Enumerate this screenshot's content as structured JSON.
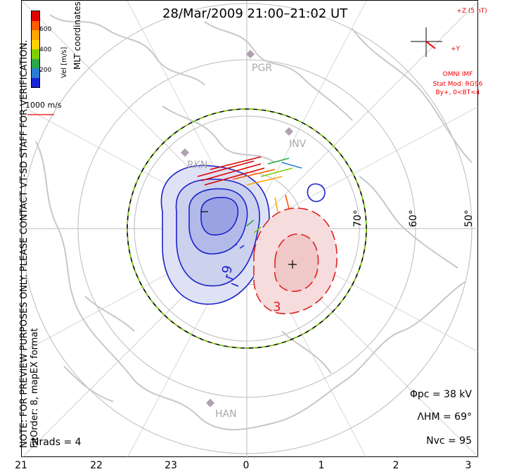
{
  "title": "28/Mar/2009 21:00–21:02 UT",
  "side_note": {
    "line1": "NOTE: FOR PREVIEW PURPOSES ONLY. PLEASE CONTACT VT-SD STAFF FOR VERIFICATION.",
    "line2": "FitOrder: 8, mapEX format"
  },
  "coordinates_label": "MLT coordinates",
  "colorbar": {
    "label": "Vel [m/s]",
    "ticks": [
      "600",
      "400",
      "200"
    ],
    "colors": [
      "#e00000",
      "#ff5a00",
      "#ffa500",
      "#ffd200",
      "#7fd000",
      "#2aa84a",
      "#2a7dd0",
      "#1a22d8"
    ]
  },
  "velocity_reference": "1000 m/s",
  "imf": {
    "z_label": "+Z (5 nT)",
    "y_label": "+Y",
    "source": "OMNI IMF",
    "model": "Stat Mod: RG96",
    "condition": "By+, 0<BT<4"
  },
  "stations": [
    "PGR",
    "INV",
    "RKN",
    "HAN"
  ],
  "latitude_labels": [
    "70°",
    "60°",
    "50°"
  ],
  "potential_labels": [
    "-9",
    "3"
  ],
  "stats": {
    "phi_pc": "Φpc = 38 kV",
    "lambda_hm": "ΛHM = 69°",
    "n_vc": "Nvc = 95"
  },
  "n_rads": "Nrads = 4",
  "mlt_ticks": [
    "21",
    "22",
    "23",
    "0",
    "1",
    "2",
    "3"
  ]
}
